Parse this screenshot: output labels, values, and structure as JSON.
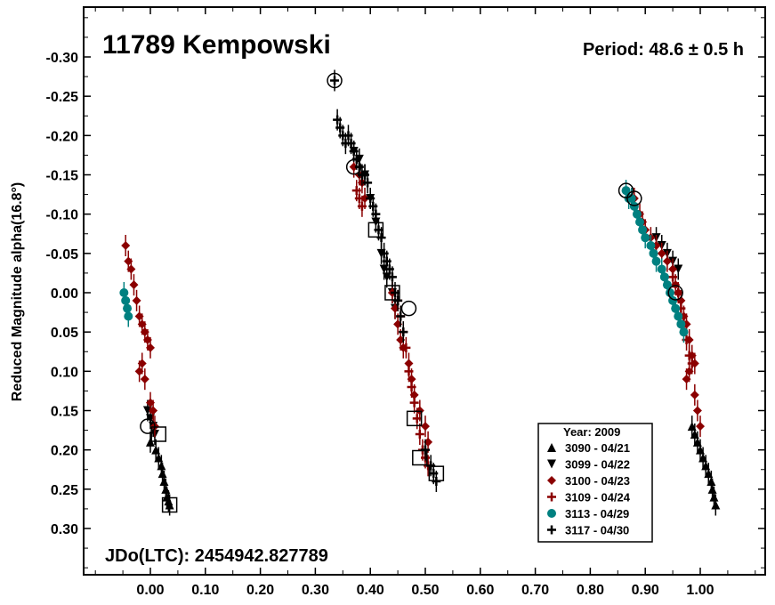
{
  "chart_data": {
    "type": "scatter",
    "title": "11789 Kempowski",
    "period_label": "Period: 48.6 ± 0.5 h",
    "epoch_label": "JDo(LTC): 2454942.827789",
    "xlabel": "",
    "ylabel": "Reduced Magnitude alpha(16.8°)",
    "xlim": [
      -0.12,
      1.12
    ],
    "ylim": [
      0.36,
      -0.37
    ],
    "y_inverted": true,
    "grid": false,
    "x_ticks": [
      "0.00",
      "0.10",
      "0.20",
      "0.30",
      "0.40",
      "0.50",
      "0.60",
      "0.70",
      "0.80",
      "0.90",
      "1.00"
    ],
    "y_ticks": [
      "-0.30",
      "-0.25",
      "-0.20",
      "-0.15",
      "-0.10",
      "-0.05",
      "0.00",
      "0.05",
      "0.10",
      "0.15",
      "0.20",
      "0.25",
      "0.30"
    ],
    "legend": {
      "title": "Year: 2009",
      "placement": "bottom-right",
      "entries": [
        "3090 - 04/21",
        "3099 - 04/22",
        "3100 - 04/23",
        "3109 - 04/24",
        "3113 - 04/29",
        "3117 - 04/30"
      ]
    },
    "series": [
      {
        "name": "3090 - 04/21",
        "marker": "triangle-up",
        "color": "#000000",
        "points": [
          [
            0.0,
            0.19
          ],
          [
            0.01,
            0.2
          ],
          [
            0.015,
            0.21
          ],
          [
            0.02,
            0.22
          ],
          [
            0.022,
            0.23
          ],
          [
            0.025,
            0.24
          ],
          [
            0.028,
            0.25
          ],
          [
            0.03,
            0.26
          ],
          [
            0.033,
            0.265
          ],
          [
            0.035,
            0.27
          ],
          [
            0.985,
            0.17
          ],
          [
            0.99,
            0.18
          ],
          [
            0.995,
            0.19
          ],
          [
            1.0,
            0.2
          ],
          [
            1.005,
            0.21
          ],
          [
            1.01,
            0.22
          ],
          [
            1.015,
            0.23
          ],
          [
            1.02,
            0.24
          ],
          [
            1.022,
            0.25
          ],
          [
            1.025,
            0.26
          ],
          [
            1.028,
            0.27
          ]
        ]
      },
      {
        "name": "3099 - 04/22",
        "marker": "triangle-down",
        "color": "#000000",
        "points": [
          [
            -0.005,
            0.15
          ],
          [
            0.0,
            0.16
          ],
          [
            0.005,
            0.17
          ],
          [
            0.008,
            0.18
          ],
          [
            0.37,
            -0.18
          ],
          [
            0.38,
            -0.17
          ],
          [
            0.39,
            -0.15
          ],
          [
            0.4,
            -0.12
          ],
          [
            0.41,
            -0.09
          ],
          [
            0.42,
            -0.05
          ],
          [
            0.425,
            -0.03
          ],
          [
            0.43,
            -0.02
          ],
          [
            0.44,
            0.0
          ],
          [
            0.445,
            0.02
          ],
          [
            0.92,
            -0.07
          ],
          [
            0.93,
            -0.06
          ],
          [
            0.94,
            -0.05
          ],
          [
            0.95,
            -0.04
          ],
          [
            0.96,
            -0.03
          ]
        ]
      },
      {
        "name": "3100 - 04/23",
        "marker": "diamond",
        "color": "#8b0000",
        "points": [
          [
            -0.045,
            -0.06
          ],
          [
            -0.04,
            -0.04
          ],
          [
            -0.035,
            -0.03
          ],
          [
            -0.03,
            -0.01
          ],
          [
            -0.025,
            0.01
          ],
          [
            -0.02,
            0.03
          ],
          [
            -0.015,
            0.04
          ],
          [
            -0.01,
            0.05
          ],
          [
            -0.005,
            0.06
          ],
          [
            0.0,
            0.07
          ],
          [
            -0.015,
            0.09
          ],
          [
            -0.02,
            0.1
          ],
          [
            -0.01,
            0.11
          ],
          [
            0.0,
            0.14
          ],
          [
            0.005,
            0.15
          ],
          [
            0.008,
            0.17
          ],
          [
            0.37,
            -0.16
          ],
          [
            0.38,
            -0.15
          ],
          [
            0.385,
            -0.14
          ],
          [
            0.39,
            -0.12
          ],
          [
            0.44,
            0.0
          ],
          [
            0.445,
            0.02
          ],
          [
            0.45,
            0.04
          ],
          [
            0.455,
            0.06
          ],
          [
            0.46,
            0.07
          ],
          [
            0.47,
            0.09
          ],
          [
            0.475,
            0.11
          ],
          [
            0.48,
            0.13
          ],
          [
            0.49,
            0.15
          ],
          [
            0.5,
            0.17
          ],
          [
            0.505,
            0.19
          ],
          [
            0.88,
            -0.12
          ],
          [
            0.89,
            -0.1
          ],
          [
            0.895,
            -0.09
          ],
          [
            0.9,
            -0.08
          ],
          [
            0.91,
            -0.07
          ],
          [
            0.92,
            -0.06
          ],
          [
            0.93,
            -0.05
          ],
          [
            0.94,
            -0.04
          ],
          [
            0.95,
            -0.03
          ],
          [
            0.955,
            -0.01
          ],
          [
            0.96,
            0.0
          ],
          [
            0.965,
            0.01
          ],
          [
            0.97,
            0.03
          ],
          [
            0.975,
            0.04
          ],
          [
            0.98,
            0.06
          ],
          [
            0.985,
            0.08
          ],
          [
            0.99,
            0.09
          ],
          [
            0.98,
            0.1
          ],
          [
            0.975,
            0.11
          ],
          [
            0.99,
            0.13
          ],
          [
            0.995,
            0.15
          ],
          [
            1.0,
            0.17
          ]
        ]
      },
      {
        "name": "3109 - 04/24",
        "marker": "plus",
        "color": "#8b0000",
        "points": [
          [
            0.375,
            -0.13
          ],
          [
            0.38,
            -0.12
          ],
          [
            0.385,
            -0.11
          ],
          [
            0.45,
            0.01
          ],
          [
            0.455,
            0.03
          ],
          [
            0.46,
            0.05
          ],
          [
            0.465,
            0.07
          ],
          [
            0.47,
            0.1
          ],
          [
            0.475,
            0.12
          ],
          [
            0.48,
            0.14
          ],
          [
            0.485,
            0.16
          ],
          [
            0.49,
            0.18
          ],
          [
            0.495,
            0.2
          ],
          [
            0.5,
            0.21
          ],
          [
            0.505,
            0.22
          ],
          [
            0.95,
            -0.02
          ],
          [
            0.96,
            0.0
          ],
          [
            0.965,
            0.02
          ],
          [
            0.97,
            0.04
          ],
          [
            0.975,
            0.06
          ],
          [
            0.98,
            0.08
          ],
          [
            0.985,
            0.09
          ]
        ]
      },
      {
        "name": "3113 - 04/29",
        "marker": "circle",
        "color": "#008080",
        "points": [
          [
            -0.048,
            0.0
          ],
          [
            -0.045,
            0.01
          ],
          [
            -0.042,
            0.02
          ],
          [
            -0.04,
            0.03
          ],
          [
            0.865,
            -0.13
          ],
          [
            0.87,
            -0.12
          ],
          [
            0.875,
            -0.12
          ],
          [
            0.88,
            -0.11
          ],
          [
            0.885,
            -0.1
          ],
          [
            0.89,
            -0.09
          ],
          [
            0.895,
            -0.08
          ],
          [
            0.9,
            -0.07
          ],
          [
            0.91,
            -0.06
          ],
          [
            0.915,
            -0.05
          ],
          [
            0.92,
            -0.04
          ],
          [
            0.93,
            -0.03
          ],
          [
            0.935,
            -0.02
          ],
          [
            0.94,
            -0.01
          ],
          [
            0.945,
            0.0
          ],
          [
            0.95,
            0.01
          ],
          [
            0.955,
            0.02
          ],
          [
            0.96,
            0.03
          ],
          [
            0.965,
            0.04
          ],
          [
            0.97,
            0.05
          ]
        ]
      },
      {
        "name": "3117 - 04/30",
        "marker": "plus",
        "color": "#000000",
        "points": [
          [
            0.335,
            -0.27
          ],
          [
            0.34,
            -0.22
          ],
          [
            0.345,
            -0.21
          ],
          [
            0.35,
            -0.2
          ],
          [
            0.355,
            -0.19
          ],
          [
            0.36,
            -0.2
          ],
          [
            0.365,
            -0.19
          ],
          [
            0.37,
            -0.18
          ],
          [
            0.375,
            -0.17
          ],
          [
            0.38,
            -0.16
          ],
          [
            0.385,
            -0.15
          ],
          [
            0.39,
            -0.15
          ],
          [
            0.395,
            -0.14
          ],
          [
            0.4,
            -0.12
          ],
          [
            0.405,
            -0.11
          ],
          [
            0.41,
            -0.1
          ],
          [
            0.415,
            -0.08
          ],
          [
            0.42,
            -0.07
          ],
          [
            0.425,
            -0.05
          ],
          [
            0.43,
            -0.04
          ],
          [
            0.435,
            -0.03
          ],
          [
            0.44,
            -0.02
          ],
          [
            0.445,
            0.0
          ],
          [
            0.45,
            0.01
          ],
          [
            0.455,
            0.03
          ],
          [
            0.46,
            0.05
          ],
          [
            0.5,
            0.2
          ],
          [
            0.51,
            0.22
          ],
          [
            0.515,
            0.23
          ],
          [
            0.52,
            0.24
          ]
        ]
      }
    ],
    "annotations": {
      "open_circles": [
        [
          0.335,
          -0.27
        ],
        [
          0.37,
          -0.16
        ],
        [
          0.47,
          0.02
        ],
        [
          0.865,
          -0.13
        ],
        [
          0.88,
          -0.12
        ],
        [
          0.955,
          0.0
        ],
        [
          -0.005,
          0.17
        ]
      ],
      "open_squares": [
        [
          0.035,
          0.27
        ],
        [
          0.015,
          0.18
        ],
        [
          0.48,
          0.16
        ],
        [
          0.49,
          0.21
        ],
        [
          0.52,
          0.23
        ],
        [
          0.44,
          0.0
        ],
        [
          0.41,
          -0.08
        ]
      ]
    }
  }
}
